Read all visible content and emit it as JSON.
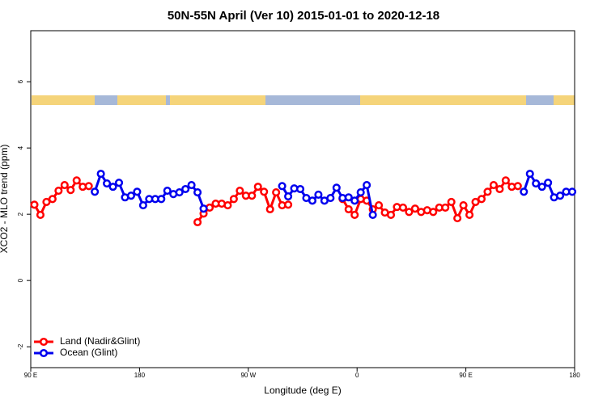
{
  "chart_data": {
    "type": "line",
    "title": "50N-55N April (Ver 10)   2015-01-01 to 2020-12-18",
    "x_label": "Longitude (deg E)",
    "y_label": "XCO2 - MLO trend (ppm)",
    "x": [
      93,
      98,
      103,
      108,
      113,
      118,
      123,
      128,
      133,
      138,
      143,
      148,
      153,
      158,
      163,
      168,
      173,
      178,
      183,
      188,
      193,
      198,
      203,
      208,
      213,
      218,
      223,
      228,
      233,
      238,
      243,
      248,
      253,
      258,
      263,
      268,
      273,
      278,
      283,
      288,
      293,
      298,
      303,
      308,
      313,
      318,
      323,
      328,
      333,
      338,
      343,
      348,
      353,
      358,
      363,
      368,
      373,
      378,
      383,
      388,
      393,
      398,
      403,
      408,
      413,
      418,
      423,
      428,
      433,
      438,
      443,
      448,
      453,
      458,
      463,
      468,
      473,
      478,
      483,
      488,
      493,
      498,
      503,
      508,
      513,
      518,
      523,
      528,
      533,
      538
    ],
    "series": [
      {
        "name": "Land (Nadir&Glint)",
        "color": "#ff0000",
        "values": [
          2.29,
          1.98,
          2.37,
          2.46,
          2.71,
          2.88,
          2.73,
          3.02,
          2.83,
          2.85,
          null,
          null,
          null,
          null,
          null,
          null,
          null,
          null,
          null,
          null,
          null,
          null,
          null,
          null,
          null,
          null,
          null,
          1.76,
          2.02,
          2.2,
          2.32,
          2.32,
          2.27,
          2.46,
          2.71,
          2.56,
          2.56,
          2.83,
          2.68,
          2.15,
          2.66,
          2.27,
          2.29,
          null,
          null,
          null,
          null,
          null,
          null,
          null,
          null,
          2.46,
          2.15,
          1.98,
          2.46,
          2.41,
          2.15,
          2.27,
          2.05,
          1.98,
          2.22,
          2.2,
          2.07,
          2.17,
          2.07,
          2.12,
          2.07,
          2.2,
          2.2,
          2.37,
          1.88,
          2.27,
          1.98,
          2.37,
          2.46,
          2.68,
          2.88,
          2.76,
          3.02,
          2.83,
          2.85,
          null,
          null,
          null,
          null,
          null,
          null,
          null,
          null,
          null
        ]
      },
      {
        "name": "Ocean (Glint)",
        "color": "#0000ee",
        "values": [
          null,
          null,
          null,
          null,
          null,
          null,
          null,
          null,
          null,
          null,
          2.68,
          3.22,
          2.93,
          2.83,
          2.95,
          2.51,
          2.56,
          2.68,
          2.27,
          2.46,
          2.46,
          2.46,
          2.71,
          2.61,
          2.66,
          2.76,
          2.88,
          2.66,
          2.17,
          null,
          null,
          null,
          null,
          null,
          null,
          null,
          null,
          null,
          null,
          null,
          null,
          2.85,
          2.54,
          2.78,
          2.76,
          2.49,
          2.41,
          2.59,
          2.41,
          2.49,
          2.8,
          2.49,
          2.51,
          2.41,
          2.66,
          2.88,
          1.98,
          null,
          null,
          null,
          null,
          null,
          null,
          null,
          null,
          null,
          null,
          null,
          null,
          null,
          null,
          null,
          null,
          null,
          null,
          null,
          null,
          null,
          null,
          null,
          null,
          2.68,
          3.22,
          2.93,
          2.83,
          2.95,
          2.51,
          2.56,
          2.68,
          2.68
        ]
      }
    ],
    "xlim": [
      90,
      540
    ],
    "xticks": [
      {
        "value": 90,
        "label": "90 E"
      },
      180,
      {
        "value": 270,
        "label": "90 W"
      },
      {
        "value": 360,
        "label": "0"
      },
      {
        "value": 450,
        "label": "90 E"
      },
      {
        "value": 540,
        "label": "180"
      }
    ],
    "ylim": [
      -2.63,
      7.54
    ],
    "yticks": [
      -2,
      0,
      2,
      4,
      6
    ],
    "legend": "bottom-left"
  }
}
